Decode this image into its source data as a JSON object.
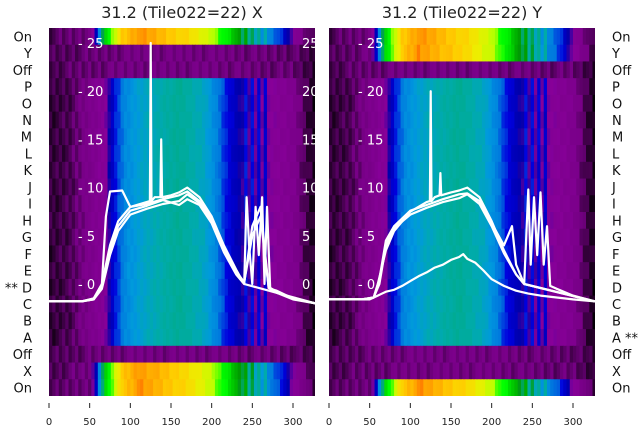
{
  "chart_data": [
    {
      "type": "heatmap",
      "title": "31.2 (Tile022=22) X",
      "row_labels": [
        "On",
        "Y",
        "Off",
        "P",
        "O",
        "N",
        "M",
        "L",
        "K",
        "J",
        "I",
        "H",
        "G",
        "F",
        "E",
        "D",
        "C",
        "B",
        "A",
        "Off",
        "X",
        "On"
      ],
      "marked_row": "D",
      "marker": "**",
      "row_types": [
        "on",
        "off",
        "off",
        "mid",
        "mid",
        "mid",
        "mid",
        "mid",
        "mid",
        "mid",
        "mid",
        "mid",
        "mid",
        "mid",
        "mid",
        "mid",
        "mid",
        "mid",
        "mid",
        "off",
        "on",
        "on"
      ],
      "xlim": [
        0,
        327
      ],
      "xticks": [
        0,
        50,
        100,
        150,
        200,
        250,
        300
      ],
      "inner_ylim": [
        -2.5,
        25.5
      ],
      "inner_yticks": [
        0,
        5,
        10,
        15,
        20,
        25
      ],
      "colormap": "nipy_spectral",
      "line_color": "#ffffff",
      "series": [
        {
          "name": "line-1",
          "x": [
            0,
            40,
            55,
            65,
            75,
            85,
            100,
            120,
            124,
            125,
            126,
            130,
            137,
            138,
            139,
            150,
            160,
            170,
            185,
            200,
            215,
            230,
            240,
            243,
            246,
            250,
            254,
            258,
            262,
            265,
            268,
            272,
            280,
            300,
            327
          ],
          "y": [
            -1.8,
            -1.8,
            -1.5,
            0,
            4,
            6.5,
            8,
            8.5,
            8.6,
            25,
            8.6,
            9,
            9,
            15,
            9,
            9.2,
            9.5,
            10,
            9,
            7,
            4,
            1.5,
            0,
            9,
            4,
            0,
            8,
            3,
            9,
            0,
            8,
            -0.5,
            -0.7,
            -1.5,
            -2
          ]
        },
        {
          "name": "line-2",
          "x": [
            0,
            40,
            55,
            65,
            70,
            75,
            90,
            100,
            120,
            140,
            160,
            170,
            185,
            200,
            215,
            230,
            240,
            250,
            260,
            270,
            280,
            300,
            327
          ],
          "y": [
            -1.8,
            -1.8,
            -1.5,
            0,
            7,
            9.6,
            9.7,
            8,
            8.3,
            8.8,
            9.2,
            9.6,
            8.6,
            6.8,
            3.8,
            1.3,
            0.2,
            5,
            7,
            -0.3,
            -0.8,
            -1.5,
            -2
          ]
        },
        {
          "name": "line-3",
          "x": [
            0,
            40,
            55,
            65,
            75,
            85,
            100,
            120,
            140,
            160,
            170,
            185,
            200,
            215,
            230,
            240,
            250,
            260,
            270,
            280,
            300,
            327
          ],
          "y": [
            -1.8,
            -1.8,
            -1.6,
            -0.5,
            3,
            5.5,
            7.2,
            7.8,
            8.3,
            8.6,
            9.3,
            8.4,
            6.6,
            3.6,
            1.2,
            0.1,
            6,
            8,
            -0.4,
            -0.9,
            -1.6,
            -2
          ]
        },
        {
          "name": "line-4",
          "x": [
            0,
            40,
            55,
            65,
            75,
            85,
            100,
            120,
            140,
            160,
            170,
            185,
            200,
            215,
            230,
            240,
            327
          ],
          "y": [
            -1.8,
            -1.8,
            -1.6,
            -0.3,
            3.5,
            6,
            7.6,
            8.1,
            8.7,
            8.2,
            8.8,
            8.2,
            6.3,
            3.3,
            1,
            0,
            -2
          ]
        }
      ]
    },
    {
      "type": "heatmap",
      "title": "31.2 (Tile022=22) Y",
      "row_labels": [
        "On",
        "Y",
        "Off",
        "P",
        "O",
        "N",
        "M",
        "L",
        "K",
        "J",
        "I",
        "H",
        "G",
        "F",
        "E",
        "D",
        "C",
        "B",
        "A",
        "Off",
        "X",
        "On"
      ],
      "marked_row": "A",
      "marker": "**",
      "row_types": [
        "on",
        "on",
        "off",
        "mid",
        "mid",
        "mid",
        "mid",
        "mid",
        "mid",
        "mid",
        "mid",
        "mid",
        "mid",
        "mid",
        "mid",
        "mid",
        "mid",
        "mid",
        "mid",
        "off",
        "off",
        "on"
      ],
      "xlim": [
        0,
        327
      ],
      "xticks": [
        0,
        50,
        100,
        150,
        200,
        250,
        300
      ],
      "inner_ylim": [
        -2.5,
        25.5
      ],
      "inner_yticks": [
        0,
        5,
        10,
        15,
        20,
        25
      ],
      "colormap": "nipy_spectral",
      "line_color": "#ffffff",
      "series": [
        {
          "name": "line-1",
          "x": [
            0,
            40,
            55,
            60,
            70,
            80,
            100,
            120,
            124,
            125,
            126,
            130,
            136,
            137,
            138,
            150,
            160,
            170,
            185,
            200,
            215,
            230,
            240,
            245,
            248,
            252,
            256,
            260,
            264,
            268,
            272,
            280,
            300,
            327
          ],
          "y": [
            -1.6,
            -1.6,
            -1.4,
            0,
            3.5,
            5.5,
            7.5,
            8.5,
            8.6,
            20,
            8.6,
            9,
            9.2,
            11.5,
            9.2,
            9.5,
            9.7,
            10,
            9,
            6.5,
            3.5,
            1,
            0,
            9.8,
            2,
            9,
            3,
            9.5,
            2,
            6,
            -0.2,
            -0.5,
            -1.2,
            -1.8
          ]
        },
        {
          "name": "line-2",
          "x": [
            0,
            40,
            55,
            62,
            70,
            80,
            100,
            120,
            140,
            160,
            170,
            185,
            200,
            215,
            225,
            230,
            240,
            327
          ],
          "y": [
            -1.6,
            -1.6,
            -1.4,
            0.5,
            4.5,
            6,
            7.6,
            8.2,
            8.8,
            9.3,
            9.4,
            8.6,
            6.3,
            4,
            6,
            2,
            0,
            -1.8
          ]
        },
        {
          "name": "line-3",
          "x": [
            0,
            40,
            55,
            62,
            70,
            80,
            100,
            120,
            140,
            160,
            170,
            185,
            200,
            215,
            230,
            240,
            327
          ],
          "y": [
            -1.6,
            -1.6,
            -1.4,
            0,
            4,
            5.8,
            7.2,
            7.9,
            8.5,
            8.9,
            9.3,
            8.3,
            6,
            3.2,
            1,
            0,
            -1.8
          ]
        },
        {
          "name": "line-4-low",
          "x": [
            0,
            50,
            60,
            70,
            80,
            90,
            100,
            110,
            120,
            130,
            140,
            150,
            160,
            165,
            170,
            180,
            190,
            200,
            215,
            230,
            245,
            260,
            280,
            300,
            327
          ],
          "y": [
            -1.6,
            -1.6,
            -1.2,
            -0.8,
            -0.6,
            -0.2,
            0.3,
            0.8,
            1.2,
            1.7,
            2,
            2.5,
            2.8,
            3.1,
            2.6,
            2.2,
            1.4,
            0.5,
            -0.2,
            -0.7,
            -1,
            -1.2,
            -1.4,
            -1.6,
            -1.8
          ]
        }
      ]
    }
  ]
}
